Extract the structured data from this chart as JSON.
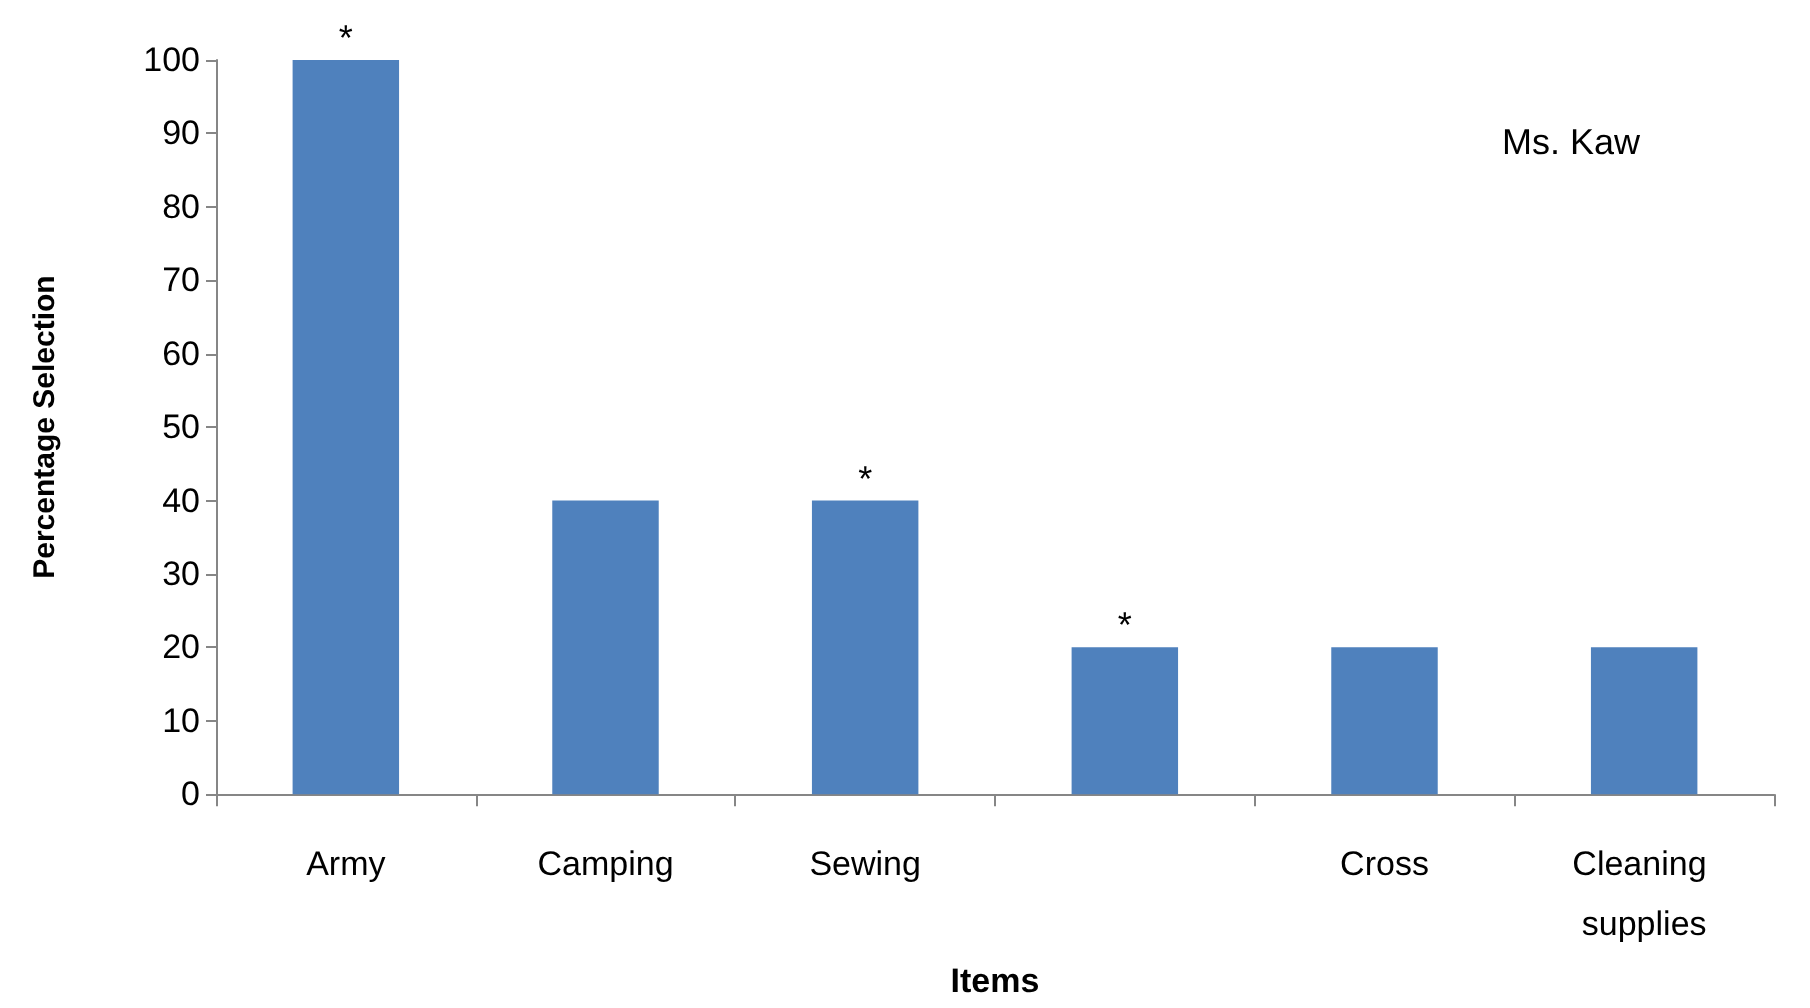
{
  "chart_data": {
    "type": "bar",
    "xlabel": "Items",
    "ylabel": "Percentage Selection",
    "categories": [
      "Army",
      "Camping",
      "Sewing",
      null,
      "Cross",
      "Cleaning supplies"
    ],
    "values": [
      100,
      40,
      40,
      20,
      20,
      20
    ],
    "value_labels": [
      "*",
      null,
      "*",
      "*",
      null,
      null
    ],
    "color": "#4f81bd",
    "ylim": [
      0,
      100
    ],
    "yticks": [
      0,
      10,
      20,
      30,
      40,
      50,
      60,
      70,
      80,
      90,
      100
    ],
    "grid": false,
    "annotations": [
      "Ms. Kaw"
    ]
  }
}
